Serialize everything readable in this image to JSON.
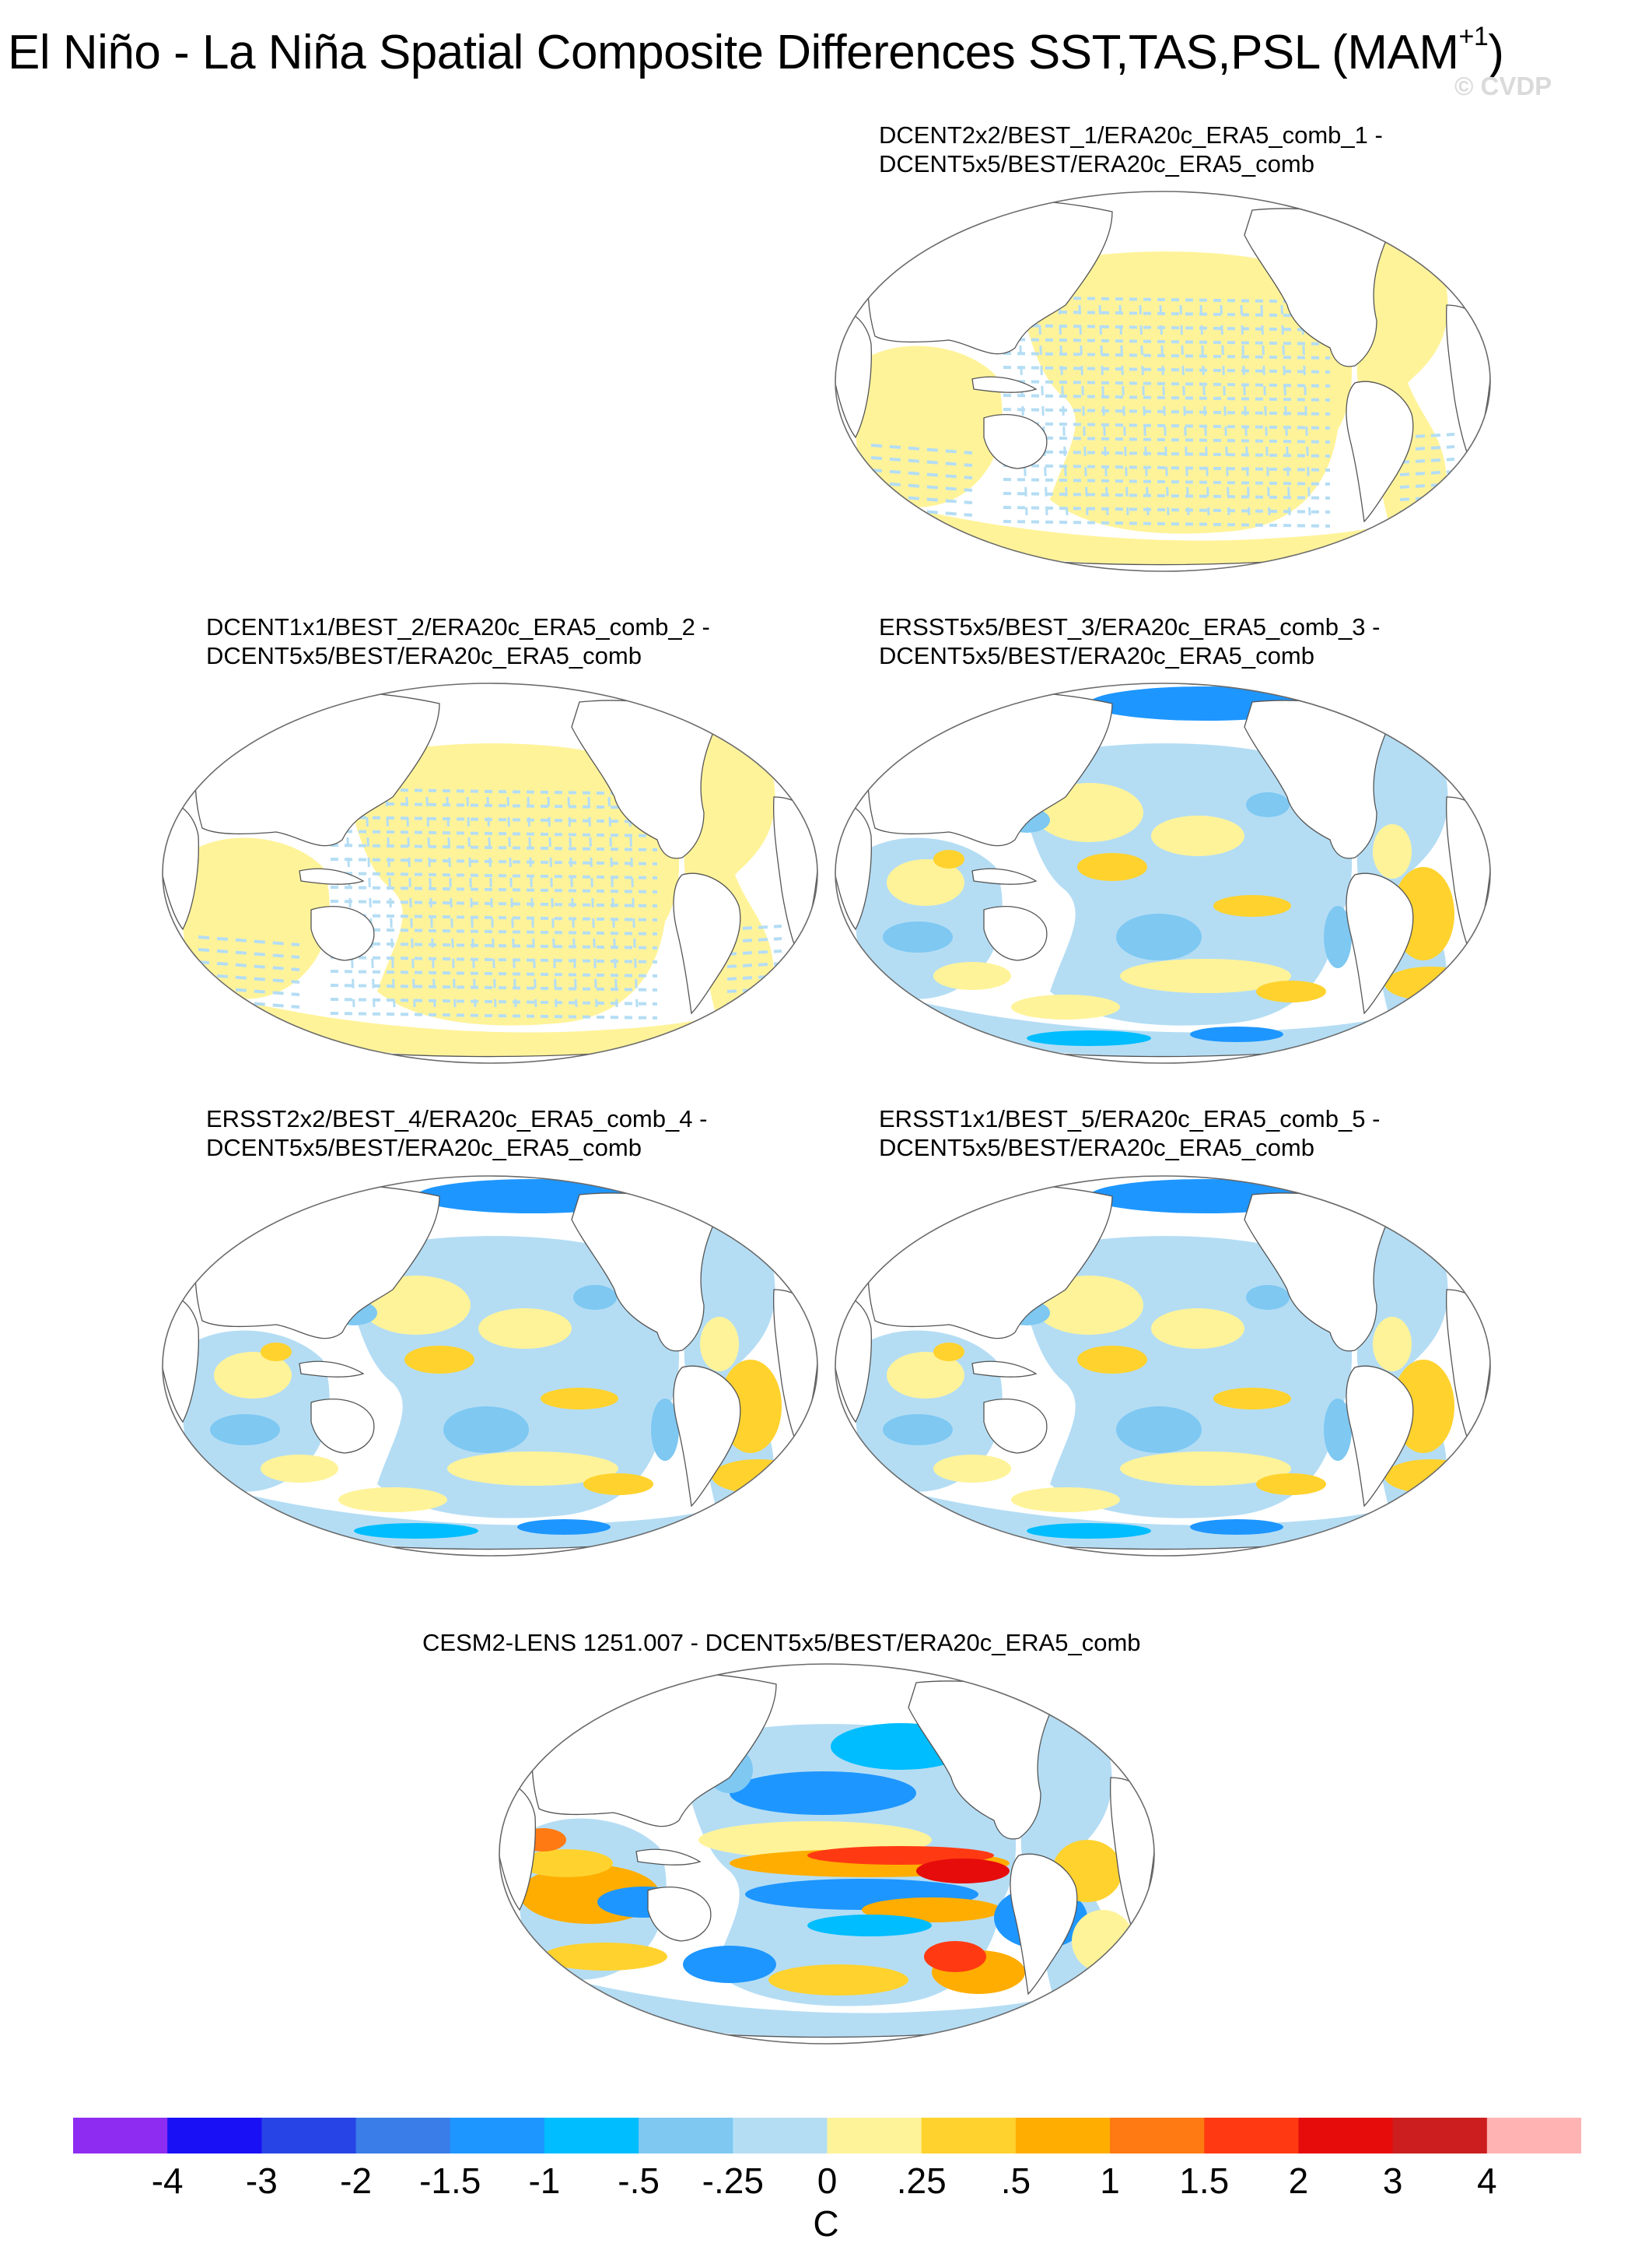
{
  "title": {
    "main": "El Niño - La Niña Spatial Composite Differences SST,TAS,PSL (MAM",
    "sup": "+1",
    "close": ")"
  },
  "watermark": "© CVDP",
  "panels": [
    {
      "line1": "DCENT2x2/BEST_1/ERA20c_ERA5_comb_1 -",
      "line2": "DCENT5x5/BEST/ERA20c_ERA5_comb",
      "pattern": "striped-yellow"
    },
    {
      "line1": "DCENT1x1/BEST_2/ERA20c_ERA5_comb_2 -",
      "line2": "DCENT5x5/BEST/ERA20c_ERA5_comb",
      "pattern": "striped-yellow"
    },
    {
      "line1": "ERSST5x5/BEST_3/ERA20c_ERA5_comb_3 -",
      "line2": "DCENT5x5/BEST/ERA20c_ERA5_comb",
      "pattern": "mixed"
    },
    {
      "line1": "ERSST2x2/BEST_4/ERA20c_ERA5_comb_4 -",
      "line2": "DCENT5x5/BEST/ERA20c_ERA5_comb",
      "pattern": "mixed"
    },
    {
      "line1": "ERSST1x1/BEST_5/ERA20c_ERA5_comb_5 -",
      "line2": "DCENT5x5/BEST/ERA20c_ERA5_comb",
      "pattern": "mixed"
    },
    {
      "line1": "CESM2-LENS 1251.007 - DCENT5x5/BEST/ERA20c_ERA5_comb",
      "line2": "",
      "pattern": "strong"
    }
  ],
  "colorbar": {
    "colors": [
      "#8f2cf2",
      "#1a10f5",
      "#2744e6",
      "#3a7ce8",
      "#1e96ff",
      "#00bdff",
      "#7ec8f2",
      "#b4ddf4",
      "#fff39a",
      "#ffd22e",
      "#ffad00",
      "#ff7a12",
      "#ff3a12",
      "#e60c0c",
      "#cc1e1e",
      "#ffb3b3"
    ],
    "ticks": [
      "-4",
      "-3",
      "-2",
      "-1.5",
      "-1",
      "-.5",
      "-.25",
      "0",
      ".25",
      ".5",
      "1",
      "1.5",
      "2",
      "3",
      "4"
    ],
    "unit": "C"
  },
  "icons": {
    "maps": "world-map-icon"
  }
}
